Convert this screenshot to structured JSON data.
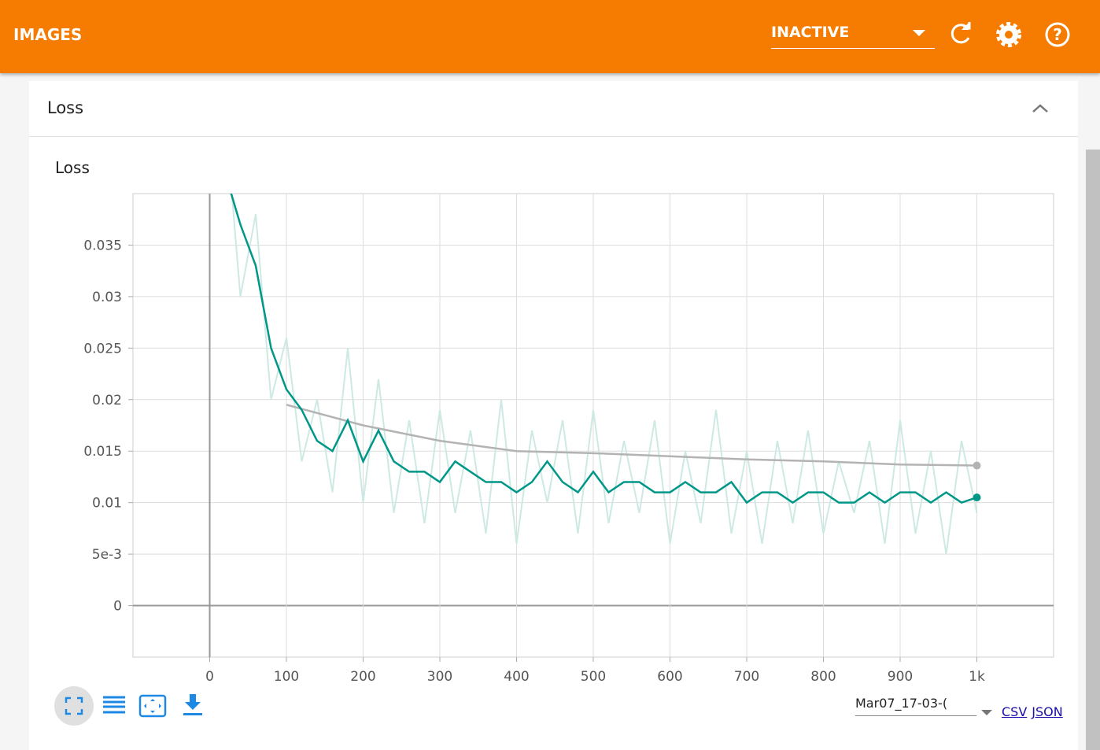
{
  "header": {
    "title": "IMAGES",
    "dropdown": "INACTIVE"
  },
  "card": {
    "title": "Loss"
  },
  "chart_data": {
    "type": "line",
    "title": "Loss",
    "xlim": [
      -100,
      1100
    ],
    "xticks": [
      0,
      100,
      200,
      300,
      400,
      500,
      600,
      700,
      800,
      900,
      {
        "value": 1000,
        "label": "1k"
      }
    ],
    "ylim": [
      -0.005,
      0.04
    ],
    "yticks": [
      0,
      {
        "value": 0.005,
        "label": "5e-3"
      },
      0.01,
      0.015,
      0.02,
      0.025,
      0.03,
      0.035
    ],
    "grid": true,
    "series": [
      {
        "color": "#cde9e4",
        "x": [
          20,
          40,
          60,
          80,
          100,
          120,
          140,
          160,
          180,
          200,
          220,
          240,
          260,
          280,
          300,
          320,
          340,
          360,
          380,
          400,
          420,
          440,
          460,
          480,
          500,
          520,
          540,
          560,
          580,
          600,
          620,
          640,
          660,
          680,
          700,
          720,
          740,
          760,
          780,
          800,
          820,
          840,
          860,
          880,
          900,
          920,
          940,
          960,
          980,
          1000
        ],
        "values": [
          0.048,
          0.03,
          0.038,
          0.02,
          0.026,
          0.014,
          0.02,
          0.011,
          0.025,
          0.01,
          0.022,
          0.009,
          0.018,
          0.008,
          0.019,
          0.009,
          0.017,
          0.007,
          0.02,
          0.006,
          0.017,
          0.01,
          0.018,
          0.007,
          0.019,
          0.008,
          0.016,
          0.009,
          0.018,
          0.006,
          0.015,
          0.008,
          0.019,
          0.007,
          0.015,
          0.006,
          0.016,
          0.008,
          0.017,
          0.007,
          0.014,
          0.009,
          0.016,
          0.006,
          0.018,
          0.007,
          0.015,
          0.005,
          0.016,
          0.009
        ]
      },
      {
        "color": "#b3b3b3",
        "x": [
          100,
          200,
          300,
          400,
          500,
          600,
          700,
          800,
          900,
          1000
        ],
        "values": [
          0.0195,
          0.0175,
          0.016,
          0.015,
          0.0148,
          0.0145,
          0.0142,
          0.014,
          0.0137,
          0.0136
        ]
      },
      {
        "color": "#009688",
        "x": [
          20,
          40,
          60,
          80,
          100,
          120,
          140,
          160,
          180,
          200,
          220,
          240,
          260,
          280,
          300,
          320,
          340,
          360,
          380,
          400,
          420,
          440,
          460,
          480,
          500,
          520,
          540,
          560,
          580,
          600,
          620,
          640,
          660,
          680,
          700,
          720,
          740,
          760,
          780,
          800,
          820,
          840,
          860,
          880,
          900,
          920,
          940,
          960,
          980,
          1000
        ],
        "values": [
          0.042,
          0.037,
          0.033,
          0.025,
          0.021,
          0.019,
          0.016,
          0.015,
          0.018,
          0.014,
          0.017,
          0.014,
          0.013,
          0.013,
          0.012,
          0.014,
          0.013,
          0.012,
          0.012,
          0.011,
          0.012,
          0.014,
          0.012,
          0.011,
          0.013,
          0.011,
          0.012,
          0.012,
          0.011,
          0.011,
          0.012,
          0.011,
          0.011,
          0.012,
          0.01,
          0.011,
          0.011,
          0.01,
          0.011,
          0.011,
          0.01,
          0.01,
          0.011,
          0.01,
          0.011,
          0.011,
          0.01,
          0.011,
          0.01,
          0.0105
        ]
      }
    ]
  },
  "footer": {
    "run": "Mar07_17-03-(",
    "links": [
      "CSV",
      "JSON"
    ]
  }
}
